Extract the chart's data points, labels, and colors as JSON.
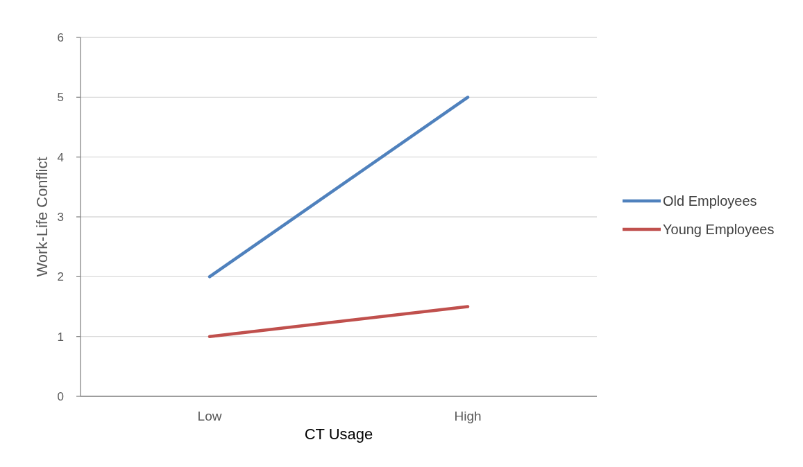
{
  "chart_data": {
    "type": "line",
    "xlabel": "CT Usage",
    "ylabel": "Work-Life Conflict",
    "categories": [
      "Low",
      "High"
    ],
    "series": [
      {
        "name": "Old Employees",
        "color": "#4f81bd",
        "values": [
          2,
          5
        ]
      },
      {
        "name": "Young Employees",
        "color": "#c0504d",
        "values": [
          1,
          1.5
        ]
      }
    ],
    "ylim": [
      0,
      6
    ],
    "yticks": [
      0,
      1,
      2,
      3,
      4,
      5,
      6
    ],
    "grid": "y",
    "legend": "right",
    "marker": "none",
    "line_style": "solid"
  }
}
